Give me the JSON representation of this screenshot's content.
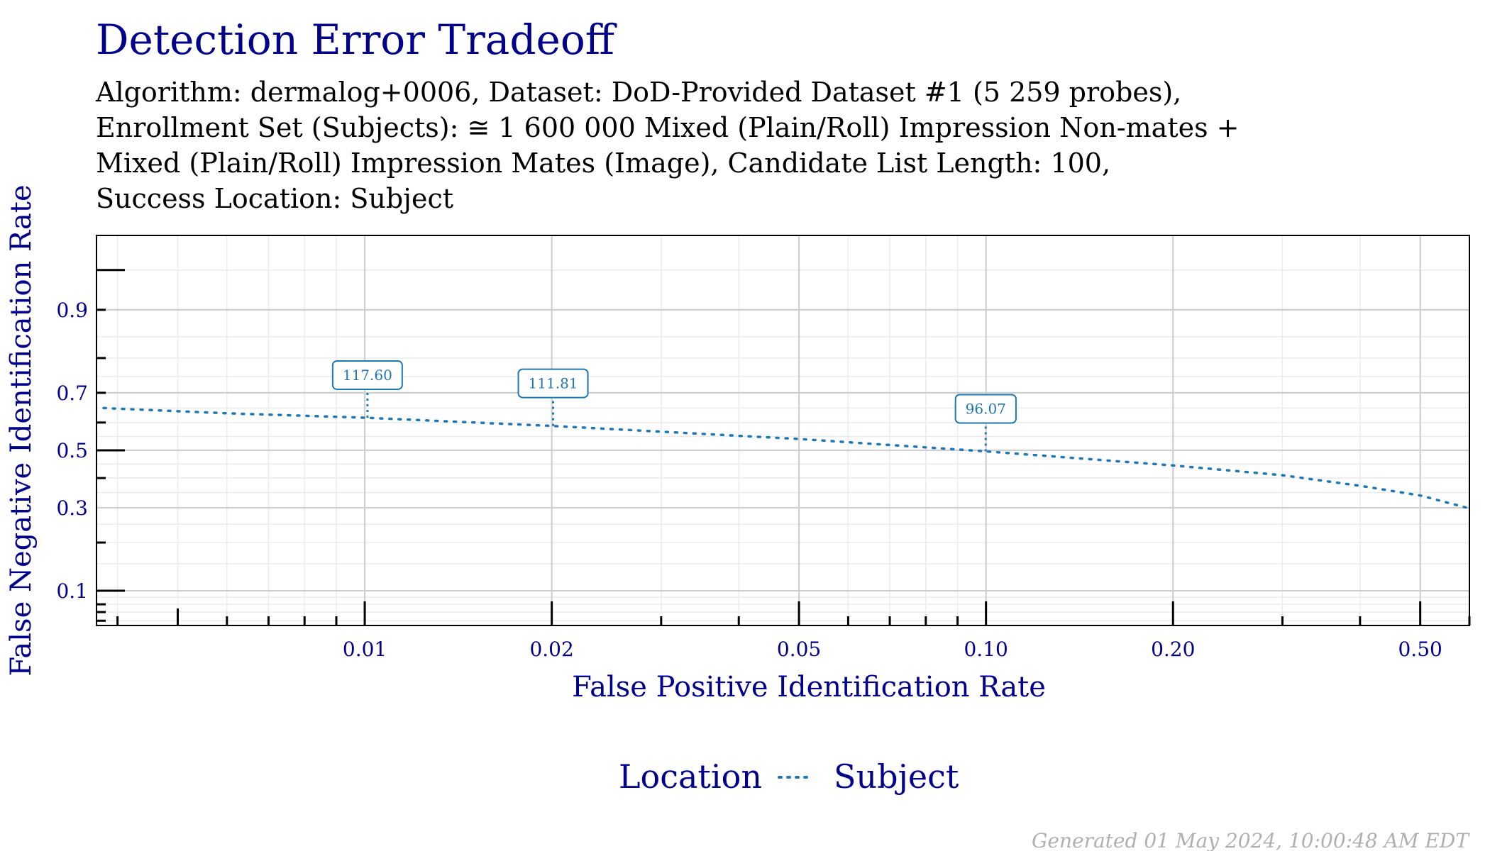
{
  "chart_data": {
    "type": "line",
    "title": "Detection Error Tradeoff",
    "subtitle_lines": [
      "Algorithm: dermalog+0006, Dataset: DoD-Provided Dataset #1 (5 259 probes),",
      "Enrollment Set (Subjects): ≅ 1 600 000 Mixed (Plain/Roll) Impression Non-mates +",
      "Mixed (Plain/Roll) Impression Mates (Image), Candidate List Length: 100,",
      "Success Location: Subject"
    ],
    "xlabel": "False Positive Identification Rate",
    "ylabel": "False Negative Identification Rate",
    "x_scale": "log",
    "y_scale": "probit",
    "xlim": [
      0.0037,
      0.6
    ],
    "ylim": [
      0.055,
      0.975
    ],
    "x_ticks": [
      {
        "value": 0.01,
        "label": "0.01"
      },
      {
        "value": 0.02,
        "label": "0.02"
      },
      {
        "value": 0.05,
        "label": "0.05"
      },
      {
        "value": 0.1,
        "label": "0.10"
      },
      {
        "value": 0.2,
        "label": "0.20"
      },
      {
        "value": 0.5,
        "label": "0.50"
      }
    ],
    "y_ticks": [
      {
        "value": 0.1,
        "label": "0.1"
      },
      {
        "value": 0.3,
        "label": "0.3"
      },
      {
        "value": 0.5,
        "label": "0.5"
      },
      {
        "value": 0.7,
        "label": "0.7"
      },
      {
        "value": 0.9,
        "label": "0.9"
      }
    ],
    "grid": true,
    "legend": {
      "title": "Location",
      "position": "bottom"
    },
    "series": [
      {
        "name": "Subject",
        "color": "#1f77b4",
        "line_style": "dotted",
        "x": [
          0.0038,
          0.006,
          0.01,
          0.02,
          0.05,
          0.1,
          0.2,
          0.3,
          0.4,
          0.5,
          0.6
        ],
        "y": [
          0.65,
          0.632,
          0.617,
          0.588,
          0.541,
          0.496,
          0.445,
          0.41,
          0.373,
          0.34,
          0.298
        ]
      }
    ],
    "annotations": [
      {
        "label": "117.60",
        "x": 0.0101,
        "y": 0.617
      },
      {
        "label": "111.81",
        "x": 0.0201,
        "y": 0.588
      },
      {
        "label": "96.07",
        "x": 0.0999,
        "y": 0.496
      }
    ]
  },
  "footer": "Generated 01 May 2024, 10:00:48 AM EDT"
}
